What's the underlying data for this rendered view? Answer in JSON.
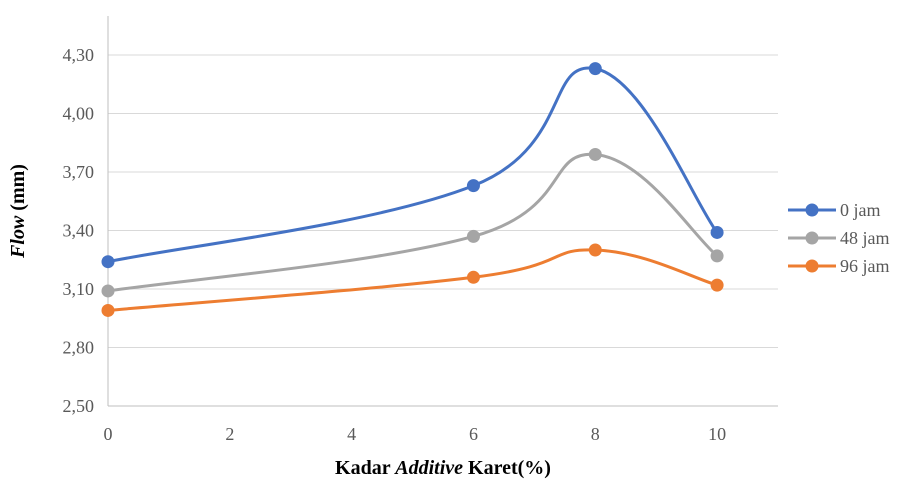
{
  "chart_data": {
    "type": "line",
    "x": [
      0,
      6,
      8,
      10
    ],
    "series": [
      {
        "name": "0 jam",
        "color": "#4472C4",
        "values": [
          3.24,
          3.63,
          4.23,
          3.39
        ]
      },
      {
        "name": "48 jam",
        "color": "#A5A5A5",
        "values": [
          3.09,
          3.37,
          3.79,
          3.27
        ]
      },
      {
        "name": "96 jam",
        "color": "#ED7D31",
        "values": [
          2.99,
          3.16,
          3.3,
          3.12
        ]
      }
    ],
    "xlim": [
      0,
      11
    ],
    "ylim": [
      2.5,
      4.5
    ],
    "x_ticks": [
      "0",
      "2",
      "4",
      "6",
      "8",
      "10"
    ],
    "y_ticks": [
      "2,50",
      "2,80",
      "3,10",
      "3,40",
      "3,70",
      "4,00",
      "4,30"
    ],
    "xlabel_parts": [
      {
        "text": "Kadar ",
        "italic": false
      },
      {
        "text": "Additive",
        "italic": true
      },
      {
        "text": " Karet(%)",
        "italic": false
      }
    ],
    "ylabel_parts": [
      {
        "text": "Flow",
        "italic": true
      },
      {
        "text": " (mm)",
        "italic": false
      }
    ],
    "grid": true,
    "smooth": true,
    "legend_position": "right"
  }
}
